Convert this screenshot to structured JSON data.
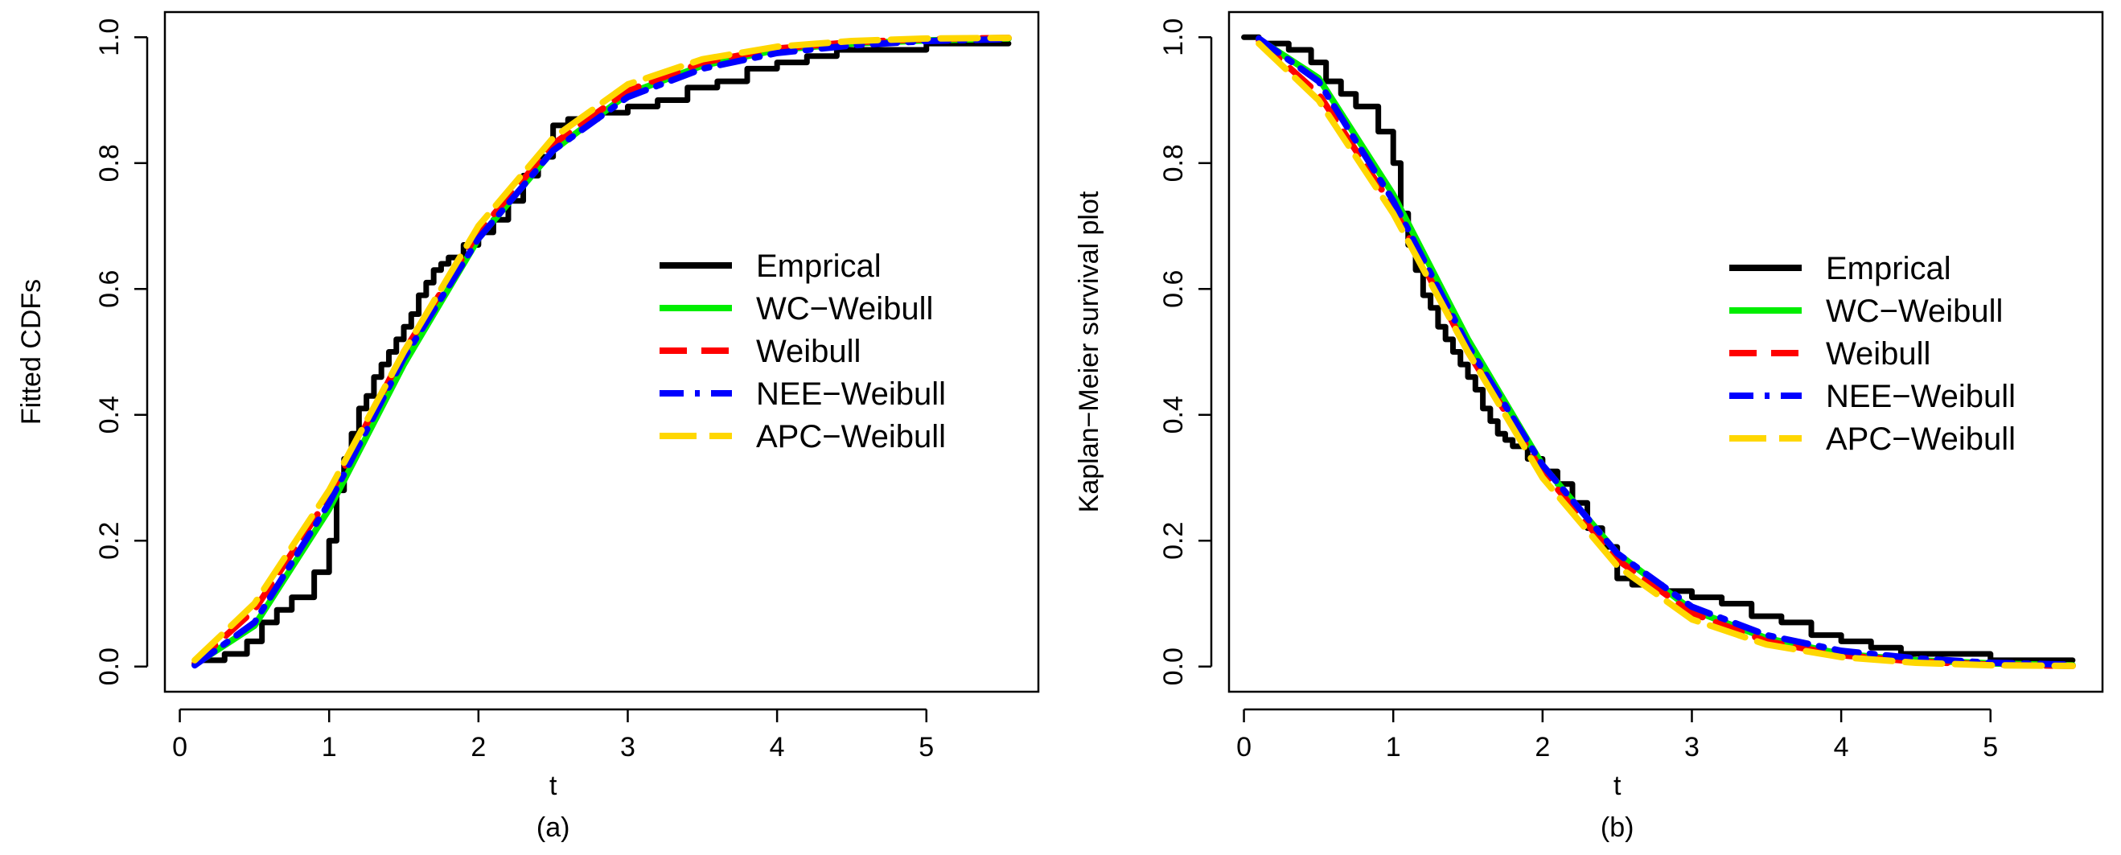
{
  "chart_data": [
    {
      "type": "line",
      "panel": "a",
      "caption": "(a)",
      "title": "",
      "xlabel": "t",
      "ylabel": "Fitted CDFs",
      "xlim": [
        -0.1,
        5.75
      ],
      "ylim": [
        -0.04,
        1.04
      ],
      "xticks": [
        "0",
        "1",
        "2",
        "3",
        "4",
        "5"
      ],
      "yticks": [
        "0.0",
        "0.2",
        "0.4",
        "0.6",
        "0.8",
        "1.0"
      ],
      "legend_position": "center-right",
      "series": [
        {
          "name": "Emprical",
          "color": "#000000",
          "style": "step",
          "x": [
            0.1,
            0.3,
            0.45,
            0.55,
            0.65,
            0.75,
            0.9,
            1.0,
            1.05,
            1.1,
            1.15,
            1.2,
            1.25,
            1.3,
            1.35,
            1.4,
            1.45,
            1.5,
            1.55,
            1.6,
            1.65,
            1.7,
            1.75,
            1.8,
            1.9,
            2.0,
            2.1,
            2.2,
            2.3,
            2.4,
            2.5,
            2.6,
            2.8,
            3.0,
            3.2,
            3.4,
            3.6,
            3.8,
            4.0,
            4.2,
            4.4,
            4.6,
            5.0,
            5.55
          ],
          "y": [
            0.01,
            0.02,
            0.04,
            0.07,
            0.09,
            0.11,
            0.15,
            0.2,
            0.28,
            0.33,
            0.37,
            0.41,
            0.43,
            0.46,
            0.48,
            0.5,
            0.52,
            0.54,
            0.56,
            0.59,
            0.61,
            0.63,
            0.64,
            0.65,
            0.67,
            0.69,
            0.71,
            0.74,
            0.78,
            0.81,
            0.86,
            0.87,
            0.88,
            0.89,
            0.9,
            0.92,
            0.93,
            0.95,
            0.96,
            0.97,
            0.98,
            0.98,
            0.99,
            0.99
          ]
        },
        {
          "name": "WC−Weibull",
          "color": "#00ee00",
          "style": "solid",
          "x": [
            0.1,
            0.5,
            1.0,
            1.5,
            2.0,
            2.5,
            3.0,
            3.5,
            4.0,
            4.5,
            5.0,
            5.55
          ],
          "y": [
            0.003,
            0.065,
            0.25,
            0.48,
            0.68,
            0.82,
            0.91,
            0.955,
            0.98,
            0.99,
            0.995,
            0.998
          ]
        },
        {
          "name": "Weibull",
          "color": "#ff0000",
          "style": "dashed",
          "x": [
            0.1,
            0.5,
            1.0,
            1.5,
            2.0,
            2.5,
            3.0,
            3.5,
            4.0,
            4.5,
            5.0,
            5.55
          ],
          "y": [
            0.005,
            0.09,
            0.27,
            0.5,
            0.69,
            0.83,
            0.915,
            0.96,
            0.982,
            0.992,
            0.997,
            0.999
          ]
        },
        {
          "name": "NEE−Weibull",
          "color": "#0000ff",
          "style": "dashdot",
          "x": [
            0.1,
            0.5,
            1.0,
            1.5,
            2.0,
            2.5,
            3.0,
            3.5,
            4.0,
            4.5,
            5.0,
            5.55
          ],
          "y": [
            0.002,
            0.07,
            0.26,
            0.49,
            0.68,
            0.82,
            0.905,
            0.95,
            0.975,
            0.987,
            0.994,
            0.997
          ]
        },
        {
          "name": "APC−Weibull",
          "color": "#ffd700",
          "style": "longdash",
          "x": [
            0.1,
            0.5,
            1.0,
            1.5,
            2.0,
            2.5,
            3.0,
            3.5,
            4.0,
            4.5,
            5.0,
            5.55
          ],
          "y": [
            0.01,
            0.1,
            0.28,
            0.5,
            0.7,
            0.84,
            0.925,
            0.965,
            0.985,
            0.994,
            0.998,
            0.999
          ]
        }
      ]
    },
    {
      "type": "line",
      "panel": "b",
      "caption": "(b)",
      "title": "",
      "xlabel": "t",
      "ylabel": "Kaplan−Meier survival plot",
      "xlim": [
        -0.1,
        5.75
      ],
      "ylim": [
        -0.04,
        1.04
      ],
      "xticks": [
        "0",
        "1",
        "2",
        "3",
        "4",
        "5"
      ],
      "yticks": [
        "0.0",
        "0.2",
        "0.4",
        "0.6",
        "0.8",
        "1.0"
      ],
      "legend_position": "center-right",
      "series": [
        {
          "name": "Emprical",
          "color": "#000000",
          "style": "step",
          "x": [
            0.0,
            0.1,
            0.3,
            0.45,
            0.55,
            0.65,
            0.75,
            0.9,
            1.0,
            1.05,
            1.1,
            1.15,
            1.2,
            1.25,
            1.3,
            1.35,
            1.4,
            1.45,
            1.5,
            1.55,
            1.6,
            1.65,
            1.7,
            1.75,
            1.8,
            1.9,
            2.0,
            2.1,
            2.2,
            2.3,
            2.4,
            2.5,
            2.6,
            2.8,
            3.0,
            3.2,
            3.4,
            3.6,
            3.8,
            4.0,
            4.2,
            4.4,
            4.6,
            5.0,
            5.55
          ],
          "y": [
            1.0,
            0.99,
            0.98,
            0.96,
            0.93,
            0.91,
            0.89,
            0.85,
            0.8,
            0.72,
            0.67,
            0.63,
            0.59,
            0.57,
            0.54,
            0.52,
            0.5,
            0.48,
            0.46,
            0.44,
            0.41,
            0.39,
            0.37,
            0.36,
            0.35,
            0.33,
            0.31,
            0.29,
            0.26,
            0.22,
            0.19,
            0.14,
            0.13,
            0.12,
            0.11,
            0.1,
            0.08,
            0.07,
            0.05,
            0.04,
            0.03,
            0.02,
            0.02,
            0.01,
            0.01
          ]
        },
        {
          "name": "WC−Weibull",
          "color": "#00ee00",
          "style": "solid",
          "x": [
            0.1,
            0.5,
            1.0,
            1.5,
            2.0,
            2.5,
            3.0,
            3.5,
            4.0,
            4.5,
            5.0,
            5.55
          ],
          "y": [
            0.997,
            0.935,
            0.75,
            0.52,
            0.32,
            0.18,
            0.09,
            0.045,
            0.02,
            0.01,
            0.005,
            0.002
          ]
        },
        {
          "name": "Weibull",
          "color": "#ff0000",
          "style": "dashed",
          "x": [
            0.1,
            0.5,
            1.0,
            1.5,
            2.0,
            2.5,
            3.0,
            3.5,
            4.0,
            4.5,
            5.0,
            5.55
          ],
          "y": [
            0.995,
            0.91,
            0.73,
            0.5,
            0.31,
            0.17,
            0.085,
            0.04,
            0.018,
            0.008,
            0.003,
            0.001
          ]
        },
        {
          "name": "NEE−Weibull",
          "color": "#0000ff",
          "style": "dashdot",
          "x": [
            0.1,
            0.5,
            1.0,
            1.5,
            2.0,
            2.5,
            3.0,
            3.5,
            4.0,
            4.5,
            5.0,
            5.55
          ],
          "y": [
            0.998,
            0.93,
            0.74,
            0.51,
            0.32,
            0.18,
            0.095,
            0.05,
            0.025,
            0.013,
            0.006,
            0.003
          ]
        },
        {
          "name": "APC−Weibull",
          "color": "#ffd700",
          "style": "longdash",
          "x": [
            0.1,
            0.5,
            1.0,
            1.5,
            2.0,
            2.5,
            3.0,
            3.5,
            4.0,
            4.5,
            5.0,
            5.55
          ],
          "y": [
            0.99,
            0.9,
            0.72,
            0.5,
            0.3,
            0.16,
            0.075,
            0.035,
            0.015,
            0.006,
            0.002,
            0.001
          ]
        }
      ]
    }
  ]
}
